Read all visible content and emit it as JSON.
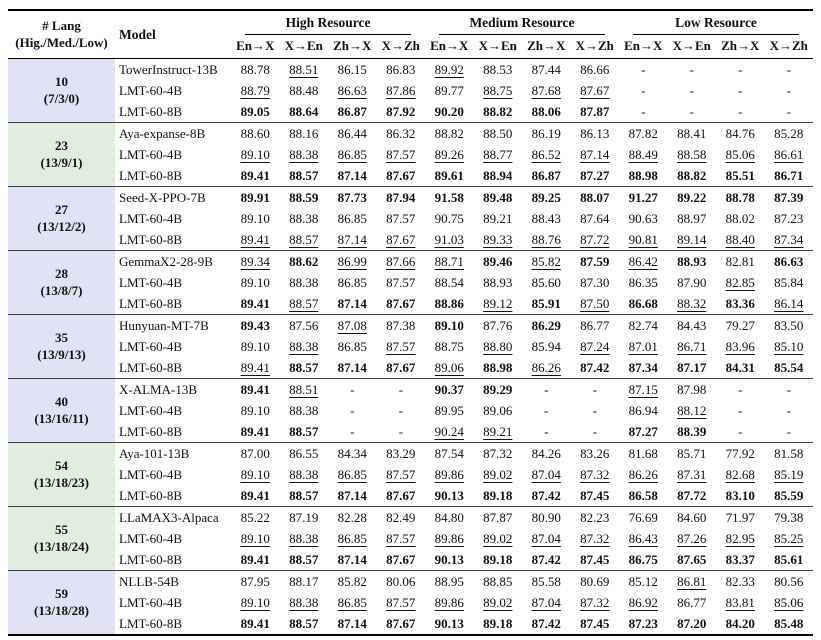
{
  "table": {
    "header": {
      "lang_label": "# Lang",
      "lang_sublabel": "(Hig./Med./Low)",
      "model_label": "Model",
      "resource_groups": [
        "High Resource",
        "Medium Resource",
        "Low Resource"
      ],
      "direction_cols": [
        "En→X",
        "X→En",
        "Zh→X",
        "X→Zh"
      ]
    },
    "colors": {
      "lavender": "#e2e2f6",
      "green": "#dfeedd"
    },
    "legend": {
      "bold_means": "best score (prefix b:)",
      "underline_means": "second best score (prefix u:)"
    },
    "groups": [
      {
        "lang": "10",
        "dist": "(7/3/0)",
        "color": "lavender",
        "rows": [
          {
            "model": "TowerInstruct-13B",
            "cells": [
              "88.78",
              "u:88.51",
              "86.15",
              "86.83",
              "u:89.92",
              "88.53",
              "87.44",
              "86.66",
              "-",
              "-",
              "-",
              "-"
            ]
          },
          {
            "model": "LMT-60-4B",
            "cells": [
              "u:88.79",
              "88.48",
              "u:86.63",
              "u:87.86",
              "89.77",
              "u:88.75",
              "u:87.68",
              "u:87.67",
              "-",
              "-",
              "-",
              "-"
            ]
          },
          {
            "model": "LMT-60-8B",
            "cells": [
              "b:89.05",
              "b:88.64",
              "b:86.87",
              "b:87.92",
              "b:90.20",
              "b:88.82",
              "b:88.06",
              "b:87.87",
              "-",
              "-",
              "-",
              "-"
            ]
          }
        ]
      },
      {
        "lang": "23",
        "dist": "(13/9/1)",
        "color": "green",
        "rows": [
          {
            "model": "Aya-expanse-8B",
            "cells": [
              "88.60",
              "88.16",
              "86.44",
              "86.32",
              "88.82",
              "88.50",
              "86.19",
              "86.13",
              "87.82",
              "88.41",
              "84.76",
              "85.28"
            ]
          },
          {
            "model": "LMT-60-4B",
            "cells": [
              "u:89.10",
              "u:88.38",
              "u:86.85",
              "u:87.57",
              "u:89.26",
              "u:88.77",
              "u:86.52",
              "u:87.14",
              "u:88.49",
              "u:88.58",
              "u:85.06",
              "u:86.61"
            ]
          },
          {
            "model": "LMT-60-8B",
            "cells": [
              "b:89.41",
              "b:88.57",
              "b:87.14",
              "b:87.67",
              "b:89.61",
              "b:88.94",
              "b:86.87",
              "b:87.27",
              "b:88.98",
              "b:88.82",
              "b:85.51",
              "b:86.71"
            ]
          }
        ]
      },
      {
        "lang": "27",
        "dist": "(13/12/2)",
        "color": "lavender",
        "rows": [
          {
            "model": "Seed-X-PPO-7B",
            "cells": [
              "b:89.91",
              "b:88.59",
              "b:87.73",
              "b:87.94",
              "b:91.58",
              "b:89.48",
              "b:89.25",
              "b:88.07",
              "b:91.27",
              "b:89.22",
              "b:88.78",
              "b:87.39"
            ]
          },
          {
            "model": "LMT-60-4B",
            "cells": [
              "89.10",
              "88.38",
              "86.85",
              "87.57",
              "90.75",
              "89.21",
              "88.43",
              "87.64",
              "90.63",
              "88.97",
              "88.02",
              "87.23"
            ]
          },
          {
            "model": "LMT-60-8B",
            "cells": [
              "u:89.41",
              "u:88.57",
              "u:87.14",
              "u:87.67",
              "u:91.03",
              "u:89.33",
              "u:88.76",
              "u:87.72",
              "u:90.81",
              "u:89.14",
              "u:88.40",
              "u:87.34"
            ]
          }
        ]
      },
      {
        "lang": "28",
        "dist": "(13/8/7)",
        "color": "lavender",
        "rows": [
          {
            "model": "GemmaX2-28-9B",
            "cells": [
              "u:89.34",
              "b:88.62",
              "u:86.99",
              "u:87.66",
              "u:88.71",
              "b:89.46",
              "u:85.82",
              "b:87.59",
              "u:86.42",
              "b:88.93",
              "82.81",
              "b:86.63"
            ]
          },
          {
            "model": "LMT-60-4B",
            "cells": [
              "89.10",
              "88.38",
              "86.85",
              "87.57",
              "88.54",
              "88.93",
              "85.60",
              "87.30",
              "86.35",
              "87.90",
              "u:82.85",
              "85.84"
            ]
          },
          {
            "model": "LMT-60-8B",
            "cells": [
              "b:89.41",
              "u:88.57",
              "b:87.14",
              "b:87.67",
              "b:88.86",
              "u:89.12",
              "b:85.91",
              "u:87.50",
              "b:86.68",
              "u:88.32",
              "b:83.36",
              "u:86.14"
            ]
          }
        ]
      },
      {
        "lang": "35",
        "dist": "(13/9/13)",
        "color": "lavender",
        "rows": [
          {
            "model": "Hunyuan-MT-7B",
            "cells": [
              "b:89.43",
              "87.56",
              "u:87.08",
              "87.38",
              "b:89.10",
              "87.76",
              "b:86.29",
              "86.77",
              "82.74",
              "84.43",
              "79.27",
              "83.50"
            ]
          },
          {
            "model": "LMT-60-4B",
            "cells": [
              "89.10",
              "u:88.38",
              "86.85",
              "u:87.57",
              "88.75",
              "u:88.80",
              "85.94",
              "u:87.24",
              "u:87.01",
              "u:86.71",
              "u:83.96",
              "u:85.10"
            ]
          },
          {
            "model": "LMT-60-8B",
            "cells": [
              "u:89.41",
              "b:88.57",
              "b:87.14",
              "b:87.67",
              "u:89.06",
              "b:88.98",
              "u:86.26",
              "b:87.42",
              "b:87.34",
              "b:87.17",
              "b:84.31",
              "b:85.54"
            ]
          }
        ]
      },
      {
        "lang": "40",
        "dist": "(13/16/11)",
        "color": "lavender",
        "rows": [
          {
            "model": "X-ALMA-13B",
            "cells": [
              "b:89.41",
              "u:88.51",
              "-",
              "-",
              "b:90.37",
              "b:89.29",
              "-",
              "-",
              "u:87.15",
              "87.98",
              "-",
              "-"
            ]
          },
          {
            "model": "LMT-60-4B",
            "cells": [
              "89.10",
              "88.38",
              "-",
              "-",
              "89.95",
              "89.06",
              "-",
              "-",
              "86.94",
              "u:88.12",
              "-",
              "-"
            ]
          },
          {
            "model": "LMT-60-8B",
            "cells": [
              "b:89.41",
              "b:88.57",
              "-",
              "-",
              "u:90.24",
              "u:89.21",
              "-",
              "-",
              "b:87.27",
              "b:88.39",
              "-",
              "-"
            ]
          }
        ]
      },
      {
        "lang": "54",
        "dist": "(13/18/23)",
        "color": "green",
        "rows": [
          {
            "model": "Aya-101-13B",
            "cells": [
              "87.00",
              "86.55",
              "84.34",
              "83.29",
              "87.54",
              "87.32",
              "84.26",
              "83.26",
              "81.68",
              "85.71",
              "77.92",
              "81.58"
            ]
          },
          {
            "model": "LMT-60-4B",
            "cells": [
              "u:89.10",
              "u:88.38",
              "u:86.85",
              "u:87.57",
              "u:89.86",
              "u:89.02",
              "u:87.04",
              "u:87.32",
              "u:86.26",
              "u:87.31",
              "u:82.68",
              "u:85.19"
            ]
          },
          {
            "model": "LMT-60-8B",
            "cells": [
              "b:89.41",
              "b:88.57",
              "b:87.14",
              "b:87.67",
              "b:90.13",
              "b:89.18",
              "b:87.42",
              "b:87.45",
              "b:86.58",
              "b:87.72",
              "b:83.10",
              "b:85.59"
            ]
          }
        ]
      },
      {
        "lang": "55",
        "dist": "(13/18/24)",
        "color": "green",
        "rows": [
          {
            "model": "LLaMAX3-Alpaca",
            "cells": [
              "85.22",
              "87.19",
              "82.28",
              "82.49",
              "84.80",
              "87.87",
              "80.90",
              "82.23",
              "76.69",
              "84.60",
              "71.97",
              "79.38"
            ]
          },
          {
            "model": "LMT-60-4B",
            "cells": [
              "u:89.10",
              "u:88.38",
              "u:86.85",
              "u:87.57",
              "u:89.86",
              "u:89.02",
              "u:87.04",
              "u:87.32",
              "u:86.43",
              "u:87.26",
              "u:82.95",
              "u:85.25"
            ]
          },
          {
            "model": "LMT-60-8B",
            "cells": [
              "b:89.41",
              "b:88.57",
              "b:87.14",
              "b:87.67",
              "b:90.13",
              "b:89.18",
              "b:87.42",
              "b:87.45",
              "b:86.75",
              "b:87.65",
              "b:83.37",
              "b:85.61"
            ]
          }
        ]
      },
      {
        "lang": "59",
        "dist": "(13/18/28)",
        "color": "lavender",
        "rows": [
          {
            "model": "NLLB-54B",
            "cells": [
              "87.95",
              "88.17",
              "85.82",
              "80.06",
              "88.95",
              "88.85",
              "85.58",
              "80.69",
              "85.12",
              "u:86.81",
              "82.33",
              "80.56"
            ]
          },
          {
            "model": "LMT-60-4B",
            "cells": [
              "u:89.10",
              "u:88.38",
              "u:86.85",
              "u:87.57",
              "u:89.86",
              "u:89.02",
              "u:87.04",
              "u:87.32",
              "u:86.92",
              "86.77",
              "u:83.81",
              "u:85.06"
            ]
          },
          {
            "model": "LMT-60-8B",
            "cells": [
              "b:89.41",
              "b:88.57",
              "b:87.14",
              "b:87.67",
              "b:90.13",
              "b:89.18",
              "b:87.42",
              "b:87.45",
              "b:87.23",
              "b:87.20",
              "b:84.20",
              "b:85.48"
            ]
          }
        ]
      }
    ]
  }
}
